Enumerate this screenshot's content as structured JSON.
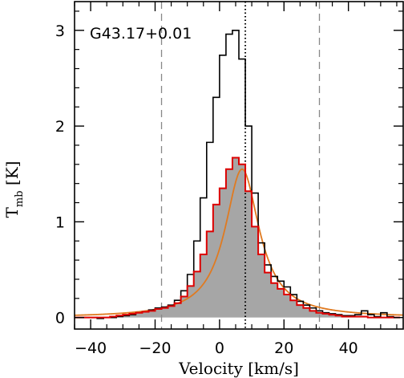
{
  "chart_data": {
    "type": "line",
    "title": "",
    "annotation": "G43.17+0.01",
    "xlabel": "Velocity [km/s]",
    "ylabel": {
      "main": "T",
      "sub": "mb",
      "unit": " [K]"
    },
    "xlim": [
      -45,
      57
    ],
    "ylim": [
      -0.12,
      3.3
    ],
    "xticks": [
      -40,
      -20,
      0,
      20,
      40
    ],
    "yticks": [
      0,
      1,
      2,
      3
    ],
    "step": 2,
    "x": [
      -45,
      -43,
      -41,
      -39,
      -37,
      -35,
      -33,
      -31,
      -29,
      -27,
      -25,
      -23,
      -21,
      -19,
      -17,
      -15,
      -13,
      -11,
      -9,
      -7,
      -5,
      -3,
      -1,
      1,
      3,
      5,
      7,
      9,
      11,
      13,
      15,
      17,
      19,
      21,
      23,
      25,
      27,
      29,
      31,
      33,
      35,
      37,
      39,
      41,
      43,
      45,
      47,
      49,
      51,
      53,
      55
    ],
    "series": [
      {
        "color": "#000000",
        "style": "step",
        "values": [
          0.0,
          0.0,
          0.0,
          0.0,
          -0.01,
          0.0,
          0.0,
          0.01,
          0.02,
          0.03,
          0.05,
          0.06,
          0.08,
          0.1,
          0.11,
          0.13,
          0.18,
          0.28,
          0.45,
          0.8,
          1.25,
          1.83,
          2.3,
          2.74,
          2.96,
          3.0,
          2.7,
          2.0,
          1.3,
          0.78,
          0.55,
          0.43,
          0.38,
          0.32,
          0.24,
          0.17,
          0.13,
          0.1,
          0.07,
          0.05,
          0.04,
          0.03,
          0.02,
          0.02,
          0.03,
          0.07,
          0.03,
          0.01,
          0.05,
          0.01,
          0.0
        ]
      },
      {
        "color": "#dd0000",
        "style": "step",
        "fill": "#a6a6a6",
        "values": [
          0.0,
          0.0,
          0.0,
          0.0,
          0.0,
          0.0,
          0.01,
          0.02,
          0.03,
          0.04,
          0.05,
          0.06,
          0.07,
          0.09,
          0.1,
          0.12,
          0.15,
          0.22,
          0.33,
          0.48,
          0.66,
          0.9,
          1.18,
          1.35,
          1.55,
          1.67,
          1.6,
          1.32,
          0.95,
          0.66,
          0.47,
          0.36,
          0.3,
          0.24,
          0.18,
          0.13,
          0.1,
          0.07,
          0.05,
          0.04,
          0.03,
          0.02,
          0.01,
          0.01,
          0.01,
          0.01,
          0.0,
          0.0,
          0.0,
          0.0,
          0.0
        ]
      }
    ],
    "vlines": [
      {
        "x": -18,
        "style": "dashed",
        "color": "#888888"
      },
      {
        "x": 31,
        "style": "dashed",
        "color": "#888888"
      },
      {
        "x": 8,
        "style": "dotted",
        "color": "#000000"
      }
    ],
    "fit_curve": {
      "color": "#e07a20",
      "center": 7,
      "amplitude": 1.55,
      "gamma": 6.5
    },
    "grid": false,
    "legend": "none"
  }
}
